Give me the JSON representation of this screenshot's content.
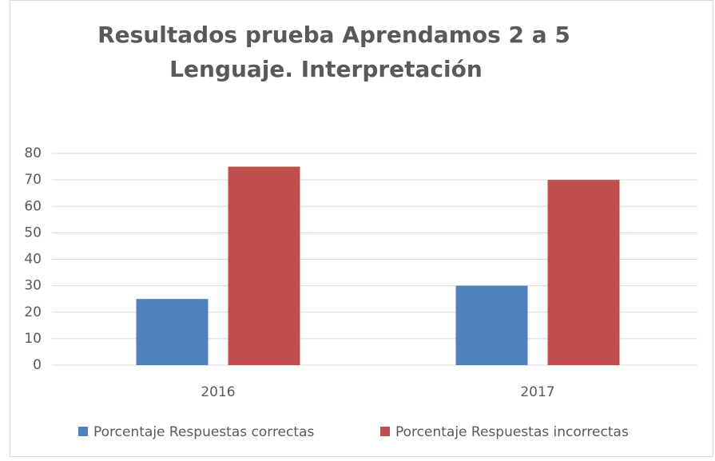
{
  "chart_data": {
    "type": "bar",
    "title": [
      "Resultados prueba Aprendamos 2 a 5",
      "Lenguaje. Interpretación"
    ],
    "categories": [
      "2016",
      "2017"
    ],
    "series": [
      {
        "name": "Porcentaje Respuestas correctas",
        "color": "#4f81bd",
        "values": [
          25,
          30
        ]
      },
      {
        "name": "Porcentaje Respuestas incorrectas",
        "color": "#c0504d",
        "values": [
          75,
          70
        ]
      }
    ],
    "ylim": [
      0,
      80
    ],
    "yticks": [
      0,
      10,
      20,
      30,
      40,
      50,
      60,
      70,
      80
    ],
    "grid": true,
    "legend": "bottom"
  }
}
